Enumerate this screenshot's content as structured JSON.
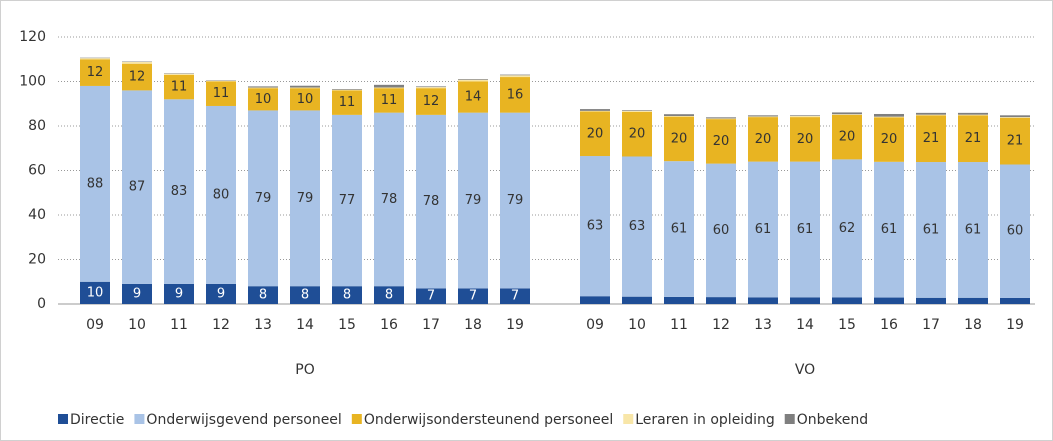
{
  "chart_data": {
    "type": "bar",
    "stacked": true,
    "groups": [
      "PO",
      "VO"
    ],
    "categories": [
      [
        "09",
        "10",
        "11",
        "12",
        "13",
        "14",
        "15",
        "16",
        "17",
        "18",
        "19"
      ],
      [
        "09",
        "10",
        "11",
        "12",
        "13",
        "14",
        "15",
        "16",
        "17",
        "18",
        "19"
      ]
    ],
    "series": [
      {
        "name": "Directie",
        "color": "#1f4e96",
        "values": [
          [
            10,
            9,
            9,
            9,
            8,
            8,
            8,
            8,
            7,
            7,
            7
          ],
          [
            3.5,
            3.3,
            3.2,
            3.1,
            3.0,
            3.0,
            3.0,
            2.9,
            2.8,
            2.8,
            2.7
          ]
        ]
      },
      {
        "name": "Onderwijsgevend personeel",
        "color": "#a9c3e6",
        "values": [
          [
            88,
            87,
            83,
            80,
            79,
            79,
            77,
            78,
            78,
            79,
            79
          ],
          [
            63,
            63,
            61,
            60,
            61,
            61,
            62,
            61,
            61,
            61,
            60
          ]
        ]
      },
      {
        "name": "Onderwijsondersteunend personeel",
        "color": "#e8b422",
        "values": [
          [
            12,
            12,
            11,
            11,
            10,
            10,
            11,
            11,
            12,
            14,
            16
          ],
          [
            20,
            20,
            20,
            20,
            20,
            20,
            20,
            20,
            21,
            21,
            21
          ]
        ]
      },
      {
        "name": "Leraren in opleiding",
        "color": "#f8e6a8",
        "values": [
          [
            0.5,
            0.8,
            0.5,
            0.3,
            0.3,
            0.3,
            0.3,
            0.3,
            0.5,
            0.8,
            0.8
          ],
          [
            0.3,
            0.5,
            0.3,
            0.3,
            0.3,
            0.5,
            0.3,
            0.3,
            0.3,
            0.3,
            0.3
          ]
        ]
      },
      {
        "name": "Onbekend",
        "color": "#7f7f7f",
        "values": [
          [
            0.2,
            0.2,
            0.2,
            0.2,
            0.5,
            0.8,
            0.3,
            1.2,
            0.3,
            0.3,
            0.3
          ],
          [
            0.8,
            0.3,
            0.8,
            0.5,
            0.5,
            0.3,
            0.8,
            1.2,
            0.8,
            0.8,
            0.8
          ]
        ]
      }
    ],
    "ylim": [
      0,
      120
    ],
    "yticks": [
      0,
      20,
      40,
      60,
      80,
      100,
      120
    ],
    "grid": true,
    "legend": "bottom"
  }
}
